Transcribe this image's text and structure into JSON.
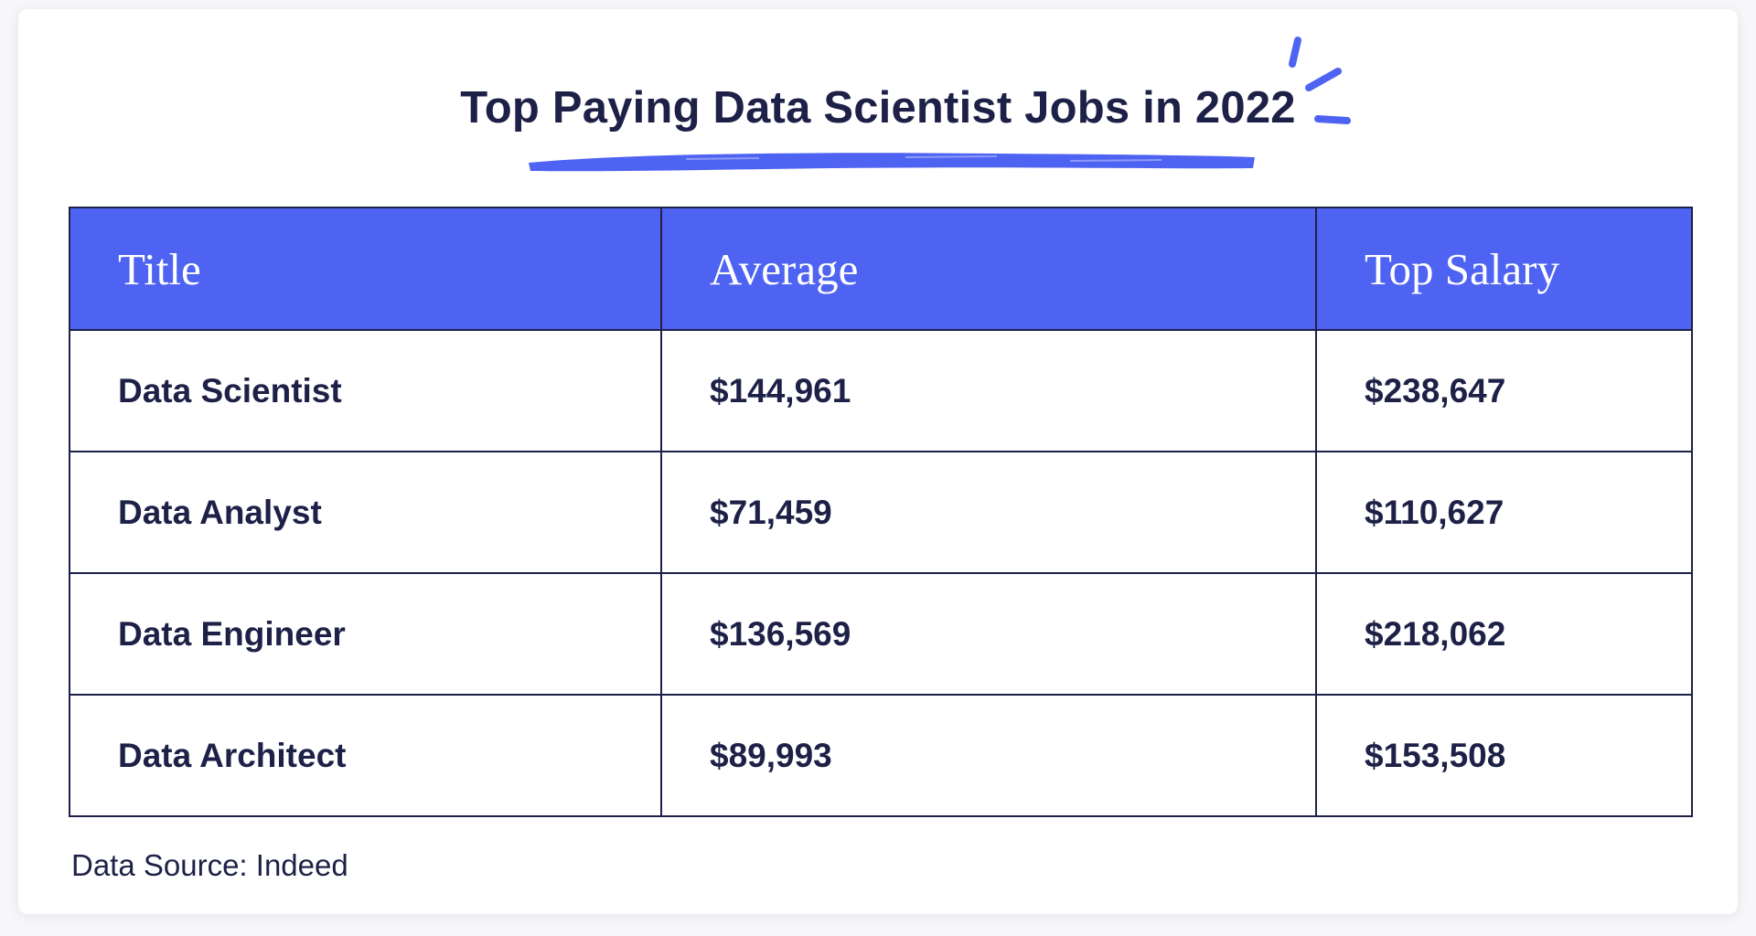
{
  "chart_data": {
    "type": "table",
    "title": "Top Paying Data Scientist Jobs in 2022",
    "columns": [
      "Title",
      "Average",
      "Top Salary"
    ],
    "rows": [
      [
        "Data Scientist",
        "$144,961",
        "$238,647"
      ],
      [
        "Data Analyst",
        "$71,459",
        "$110,627"
      ],
      [
        "Data Engineer",
        "$136,569",
        "$218,062"
      ],
      [
        "Data Architect",
        "$89,993",
        "$153,508"
      ]
    ],
    "source": "Data Source: Indeed"
  },
  "colors": {
    "accent": "#4f63f2",
    "text": "#1e2147",
    "background": "#ffffff"
  }
}
